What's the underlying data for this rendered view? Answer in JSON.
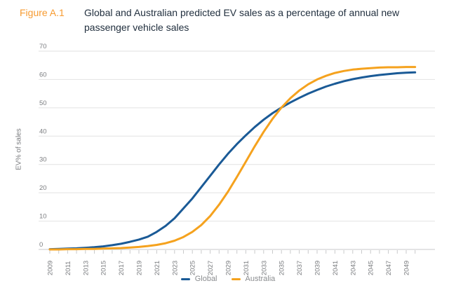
{
  "figure": {
    "label": "Figure A.1",
    "title_line1": "Global and Australian predicted EV sales as a percentage of annual new",
    "title_line2": "passenger vehicle sales"
  },
  "chart_data": {
    "type": "line",
    "title": "Global and Australian predicted EV sales as a percentage of annual new passenger vehicle sales",
    "xlabel": "",
    "ylabel": "EV% of sales",
    "ylim": [
      0,
      70
    ],
    "yticks": [
      0,
      10,
      20,
      30,
      40,
      50,
      60,
      70
    ],
    "grid": "horizontal",
    "legend_position": "bottom",
    "x": [
      2009,
      2010,
      2011,
      2012,
      2013,
      2014,
      2015,
      2016,
      2017,
      2018,
      2019,
      2020,
      2021,
      2022,
      2023,
      2024,
      2025,
      2026,
      2027,
      2028,
      2029,
      2030,
      2031,
      2032,
      2033,
      2034,
      2035,
      2036,
      2037,
      2038,
      2039,
      2040,
      2041,
      2042,
      2043,
      2044,
      2045,
      2046,
      2047,
      2048,
      2049,
      2050
    ],
    "xtick_labels": [
      "2009",
      "2011",
      "2013",
      "2015",
      "2017",
      "2019",
      "2021",
      "2023",
      "2025",
      "2027",
      "2029",
      "2031",
      "2033",
      "2035",
      "2037",
      "2039",
      "2041",
      "2043",
      "2045",
      "2047",
      "2049"
    ],
    "series": [
      {
        "name": "Global",
        "color": "#1A5A96",
        "values": [
          0.1,
          0.2,
          0.3,
          0.4,
          0.6,
          0.8,
          1.1,
          1.5,
          2.0,
          2.7,
          3.5,
          4.5,
          6.2,
          8.3,
          11.0,
          14.5,
          18.0,
          22.0,
          26.0,
          30.0,
          33.8,
          37.2,
          40.3,
          43.2,
          45.8,
          48.1,
          50.1,
          51.9,
          53.5,
          55.0,
          56.3,
          57.5,
          58.5,
          59.4,
          60.1,
          60.7,
          61.2,
          61.6,
          61.9,
          62.2,
          62.4,
          62.5
        ]
      },
      {
        "name": "Australia",
        "color": "#F5A21E",
        "values": [
          0.0,
          0.0,
          0.1,
          0.1,
          0.2,
          0.2,
          0.3,
          0.4,
          0.5,
          0.7,
          0.9,
          1.2,
          1.6,
          2.2,
          3.1,
          4.4,
          6.2,
          8.6,
          11.8,
          15.8,
          20.4,
          25.6,
          31.0,
          36.4,
          41.5,
          46.1,
          50.1,
          53.4,
          56.1,
          58.3,
          60.0,
          61.3,
          62.3,
          63.0,
          63.5,
          63.8,
          64.0,
          64.2,
          64.3,
          64.3,
          64.4,
          64.4
        ]
      }
    ]
  },
  "colors": {
    "figure_label": "#F79B31",
    "title_text": "#22303F",
    "axis_text": "#7B7D80",
    "legend_text": "#8A8C8F",
    "gridline": "#E2E2E2",
    "axis_line": "#C9CACB",
    "background": "#FFFFFF"
  }
}
